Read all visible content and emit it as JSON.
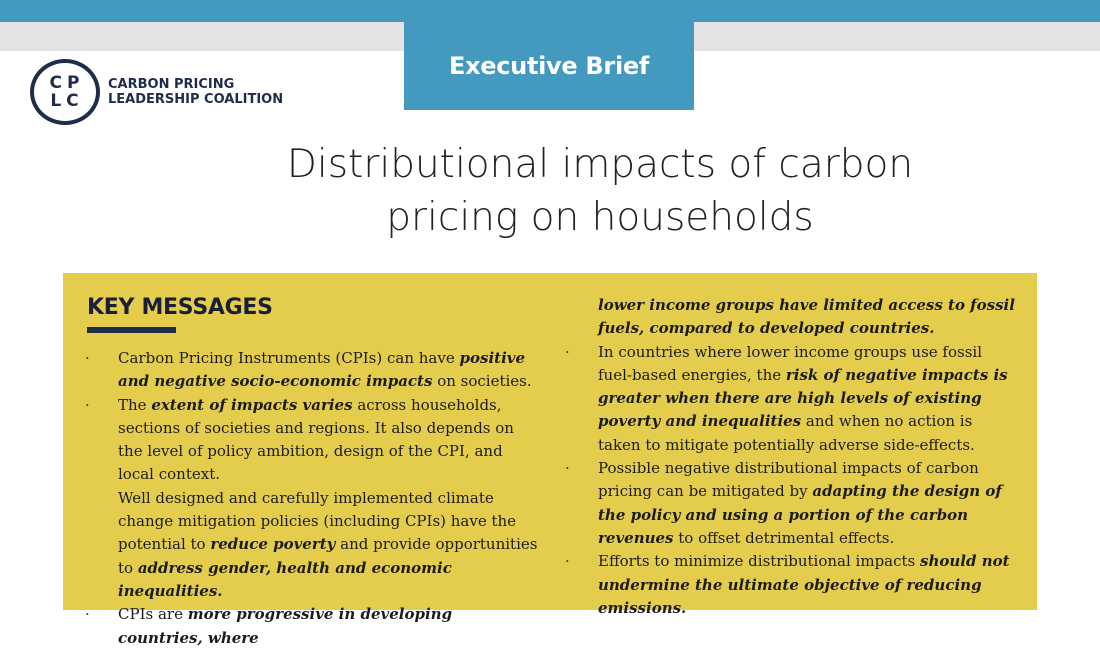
{
  "header": {
    "brief_label": "Executive Brief",
    "logo_letters_top": "CP",
    "logo_letters_bottom": "LC",
    "logo_line1": "CARBON PRICING",
    "logo_line2": "LEADERSHIP COALITION",
    "colors": {
      "accent_blue": "#4499bf",
      "navy": "#1e2d4a",
      "box_yellow": "#e4cd4c"
    }
  },
  "title": {
    "line1": "Distributional impacts of carbon",
    "line2": "pricing on households"
  },
  "key_messages": {
    "heading": "KEY MESSAGES",
    "left": {
      "b1": {
        "t1": "Carbon Pricing Instruments (CPIs) can have ",
        "e1": "positive and negative socio-economic impacts",
        "t2": " on societies."
      },
      "b2": {
        "t1": "The ",
        "e1": "extent of impacts varies",
        "t2": " across households, sections of societies and regions. It also depends on the level of policy ambition, design of the CPI, and local context."
      },
      "p3": {
        "t1": "Well designed and carefully implemented climate change mitigation policies (including CPIs) have the potential to ",
        "e1": "reduce poverty",
        "t2": " and provide opportunities to ",
        "e2": "address gender, health and economic inequalities."
      },
      "b4": {
        "t1": "CPIs are ",
        "e1": "more progressive in developing countries, where"
      }
    },
    "right": {
      "cont": {
        "e1": "lower income groups have limited access to fossil fuels, compared to developed countries."
      },
      "b5": {
        "t1": "In countries where lower income groups use fossil fuel-based energies, the ",
        "e1": "risk of negative impacts is greater when there are high levels of existing poverty and inequalities",
        "t2": " and when no action is taken to mitigate potentially adverse side-effects."
      },
      "b6": {
        "t1": "Possible negative distributional impacts of carbon pricing can be mitigated by ",
        "e1": "adapting the design of the policy and using a portion of the carbon revenues",
        "t2": " to offset detrimental effects."
      },
      "b7": {
        "t1": "Efforts to minimize distributional impacts ",
        "e1": "should not undermine the ultimate objective of reducing emissions."
      }
    }
  }
}
